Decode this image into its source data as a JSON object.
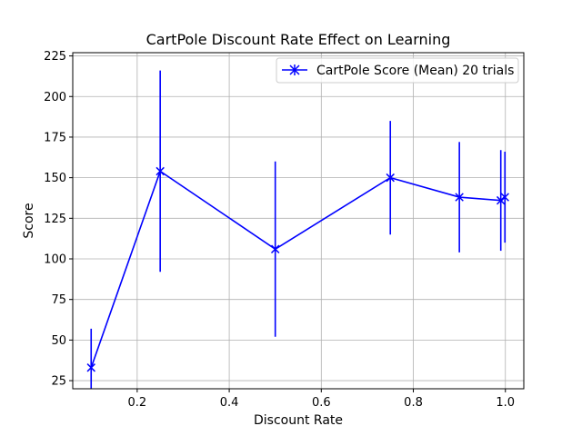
{
  "chart_data": {
    "type": "line",
    "title": "CartPole Discount Rate Effect on Learning",
    "xlabel": "Discount Rate",
    "ylabel": "Score",
    "xlim": [
      0.06,
      1.04
    ],
    "ylim": [
      20,
      227
    ],
    "grid": true,
    "legend_position": "top-right",
    "x_ticks": [
      0.2,
      0.4,
      0.6,
      0.8,
      1.0
    ],
    "x_tick_labels": [
      "0.2",
      "0.4",
      "0.6",
      "0.8",
      "1.0"
    ],
    "y_ticks": [
      25,
      50,
      75,
      100,
      125,
      150,
      175,
      200,
      225
    ],
    "y_tick_labels": [
      "25",
      "50",
      "75",
      "100",
      "125",
      "150",
      "175",
      "200",
      "225"
    ],
    "series": [
      {
        "name": "CartPole Score (Mean) 20 trials",
        "color": "#0000ff",
        "marker": "x",
        "x": [
          0.1,
          0.25,
          0.5,
          0.75,
          0.9,
          0.99,
          0.999
        ],
        "y": [
          33,
          154,
          106,
          150,
          138,
          136,
          138
        ],
        "error": [
          24,
          62,
          54,
          35,
          34,
          31,
          28
        ]
      }
    ]
  }
}
